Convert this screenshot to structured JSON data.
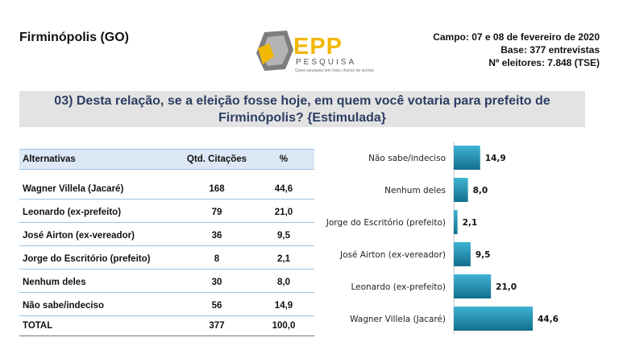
{
  "header": {
    "city": "Firminópolis (GO)",
    "campo": "Campo: 07 e 08 de fevereiro de 2020",
    "base": "Base: 377 entrevistas",
    "eleitores": "Nº eleitores: 7.848  (TSE)"
  },
  "logo": {
    "name": "EPP",
    "sub": "PESQUISA",
    "tagline": "Quem pesquisa tem mais chance de acertar",
    "colors": {
      "yellow": "#f2b705",
      "gray": "#8a8a8a"
    }
  },
  "question": {
    "line1": "03) Desta relação, se a eleição fosse hoje, em quem você votaria para prefeito de",
    "line2": "Firminópolis? {Estimulada}"
  },
  "table": {
    "headers": [
      "Alternativas",
      "Qtd. Citações",
      "%"
    ],
    "rows": [
      {
        "alt": "Wagner Villela (Jacaré)",
        "qtd": "168",
        "pct": "44,6"
      },
      {
        "alt": "Leonardo (ex-prefeito)",
        "qtd": "79",
        "pct": "21,0"
      },
      {
        "alt": "José Airton (ex-vereador)",
        "qtd": "36",
        "pct": "9,5"
      },
      {
        "alt": "Jorge do Escritório (prefeito)",
        "qtd": "8",
        "pct": "2,1"
      },
      {
        "alt": "Nenhum deles",
        "qtd": "30",
        "pct": "8,0"
      },
      {
        "alt": "Não sabe/indeciso",
        "qtd": "56",
        "pct": "14,9"
      }
    ],
    "total": {
      "alt": "TOTAL",
      "qtd": "377",
      "pct": "100,0"
    }
  },
  "chart_data": {
    "type": "bar",
    "orientation": "horizontal",
    "categories": [
      "Não sabe/indeciso",
      "Nenhum deles",
      "Jorge do Escritório (prefeito)",
      "José Airton (ex-vereador)",
      "Leonardo (ex-prefeito)",
      "Wagner Villela (Jacaré)"
    ],
    "values": [
      14.9,
      8.0,
      2.1,
      9.5,
      21.0,
      44.6
    ],
    "labels": [
      "14,9",
      "8,0",
      "2,1",
      "9,5",
      "21,0",
      "44,6"
    ],
    "xlim": [
      0,
      44.6
    ],
    "bar_color": "#1f93b5",
    "grid": false,
    "legend": "none"
  }
}
